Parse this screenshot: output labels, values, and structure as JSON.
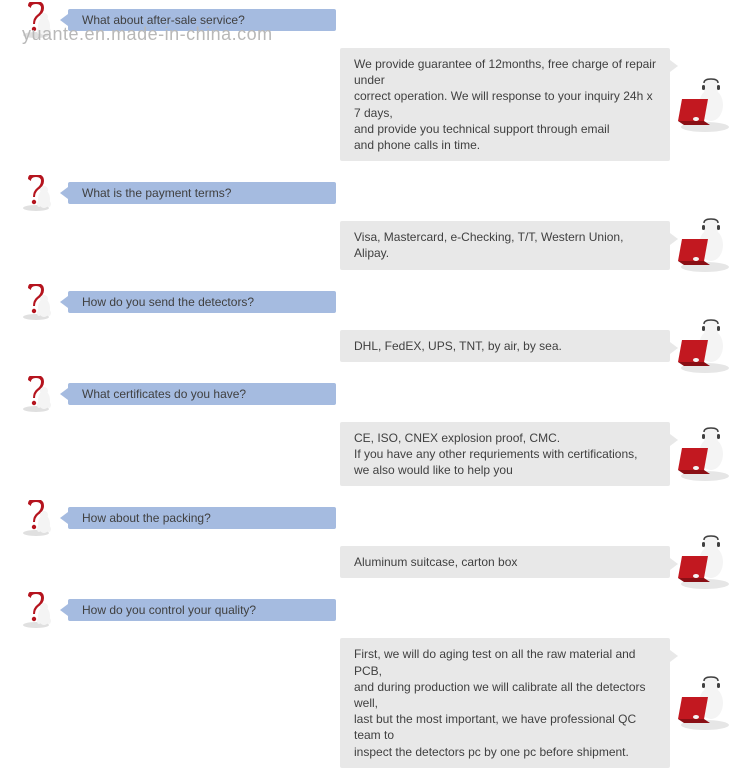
{
  "watermark": "yuante.en.made-in-china.com",
  "colors": {
    "q_bubble_bg": "#a5bbe0",
    "q_bubble_arrow": "#a5bbe0",
    "a_bubble_bg": "#e8e8e8",
    "a_bubble_arrow": "#e8e8e8",
    "text": "#404040",
    "q_mark_red": "#b5141e",
    "figure_white": "#f4f4f4",
    "figure_shadow": "#d6d6d6",
    "laptop_red": "#c21820",
    "laptop_dark": "#8a0f15",
    "headset": "#404040"
  },
  "layout": {
    "q_bubble_width": 268,
    "a_bubble_width": 330
  },
  "faq": [
    {
      "q": "What about after-sale service?",
      "a": "We provide guarantee of 12months, free charge of repair under\ncorrect operation. We will response to your inquiry 24h x 7 days,\nand provide you technical support through email\nand phone calls in time."
    },
    {
      "q": "What is the payment terms?",
      "a": "Visa, Mastercard, e-Checking, T/T, Western Union, Alipay."
    },
    {
      "q": "How do you send the detectors?",
      "a": "DHL, FedEX, UPS, TNT, by air, by sea."
    },
    {
      "q": "What certificates do you have?",
      "a": "CE, ISO, CNEX explosion proof, CMC.\nIf you have any other requriements with certifications,\nwe also would like to help you"
    },
    {
      "q": "How about the packing?",
      "a": "Aluminum suitcase, carton box"
    },
    {
      "q": "How do you control your quality?",
      "a": "First, we will do aging test on all the raw material and PCB,\nand during production we will calibrate all the detectors well,\nlast but the most important, we have professional QC team to\ninspect the detectors pc by one pc before shipment."
    }
  ]
}
